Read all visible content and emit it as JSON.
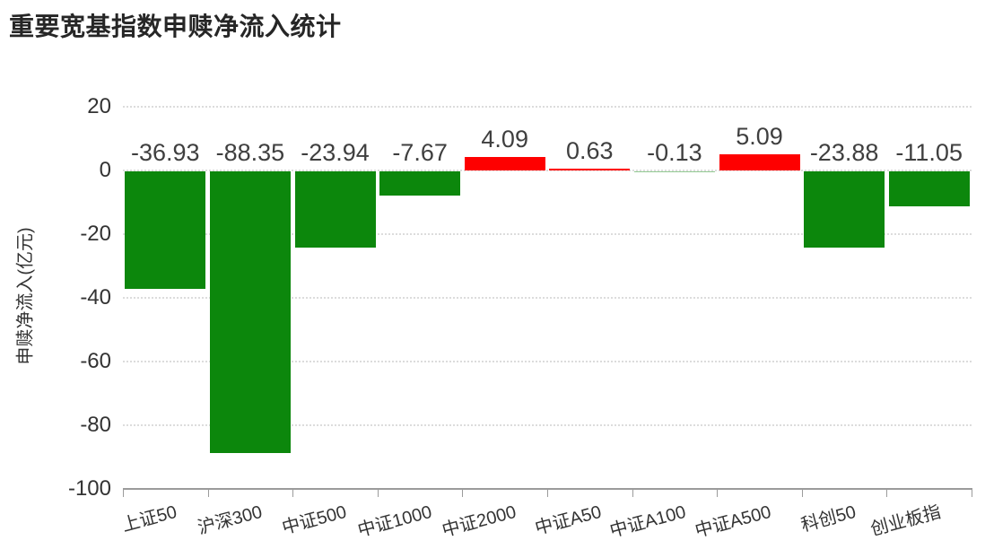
{
  "chart_data": {
    "type": "bar",
    "title": "重要宽基指数申赎净流入统计",
    "xlabel": "",
    "ylabel": "申赎净流入(亿元)",
    "categories": [
      "上证50",
      "沪深300",
      "中证500",
      "中证1000",
      "中证2000",
      "中证A50",
      "中证A100",
      "中证A500",
      "科创50",
      "创业板指"
    ],
    "values": [
      -36.93,
      -88.35,
      -23.94,
      -7.67,
      4.09,
      0.63,
      -0.13,
      5.09,
      -23.88,
      -11.05
    ],
    "value_labels": [
      "-36.93",
      "-88.35",
      "-23.94",
      "-7.67",
      "4.09",
      "0.63",
      "-0.13",
      "5.09",
      "-23.88",
      "-11.05"
    ],
    "ylim": [
      -100,
      20
    ],
    "yticks": [
      20,
      0,
      -20,
      -40,
      -60,
      -80,
      -100
    ],
    "grid": "horizontal-dotted",
    "legend": "none",
    "colors": {
      "positive_bar": "#fe0000",
      "negative_bar": "#0c870c",
      "gridline": "#dcdcdc",
      "axis_line": "#9b9b9b",
      "value_label": "#3f3f3f",
      "tick_label": "#333333",
      "title": "#262626"
    }
  }
}
